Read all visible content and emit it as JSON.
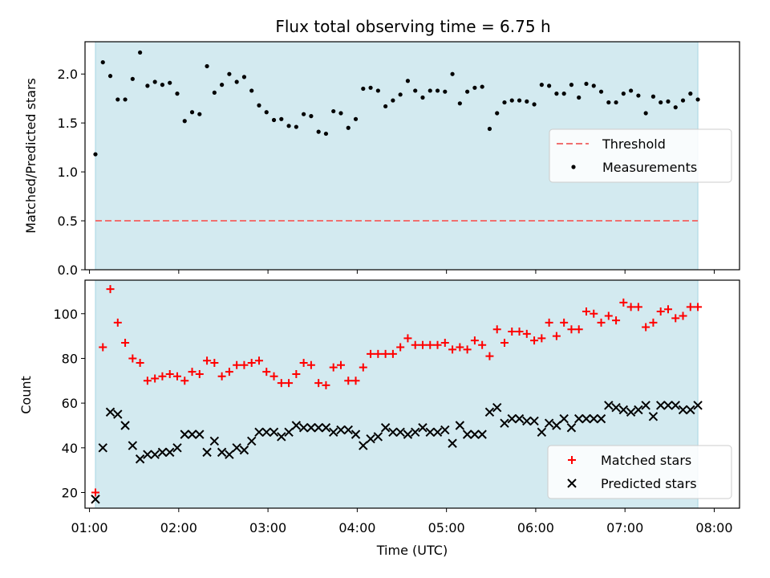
{
  "title": "Flux total observing time = 6.75 h",
  "colors": {
    "shade": "#d3eaf0",
    "shade_edge": "#a8d5e2",
    "threshold": "#f07070",
    "measurements": "#000000",
    "matched": "#ff0000",
    "predicted": "#000000"
  },
  "chart_data": [
    {
      "type": "scatter",
      "panel": "top",
      "xlabel": "",
      "ylabel": "Matched/Predicted stars",
      "xlim": [
        "00:57",
        "08:17"
      ],
      "ylim": [
        0,
        2.33
      ],
      "yticks": [
        {
          "value": 0.0,
          "label": "0.0"
        },
        {
          "value": 0.5,
          "label": "0.5"
        },
        {
          "value": 1.0,
          "label": "1.0"
        },
        {
          "value": 1.5,
          "label": "1.5"
        },
        {
          "value": 2.0,
          "label": "2.0"
        }
      ],
      "xticks": [
        "01:00",
        "02:00",
        "03:00",
        "04:00",
        "05:00",
        "06:00",
        "07:00",
        "08:00"
      ],
      "observing_window": [
        "01:04",
        "07:49"
      ],
      "threshold": {
        "name": "Threshold",
        "value": 0.5
      },
      "legend": {
        "placement": "center-right",
        "entries": [
          "Threshold",
          "Measurements"
        ]
      },
      "series": [
        {
          "name": "Measurements",
          "x": [
            "01:04",
            "01:09",
            "01:14",
            "01:19",
            "01:24",
            "01:29",
            "01:34",
            "01:39",
            "01:44",
            "01:49",
            "01:54",
            "01:59",
            "02:04",
            "02:09",
            "02:14",
            "02:19",
            "02:24",
            "02:29",
            "02:34",
            "02:39",
            "02:44",
            "02:49",
            "02:54",
            "02:59",
            "03:04",
            "03:09",
            "03:14",
            "03:19",
            "03:24",
            "03:29",
            "03:34",
            "03:39",
            "03:44",
            "03:49",
            "03:54",
            "03:59",
            "04:04",
            "04:09",
            "04:14",
            "04:19",
            "04:24",
            "04:29",
            "04:34",
            "04:39",
            "04:44",
            "04:49",
            "04:54",
            "04:59",
            "05:04",
            "05:09",
            "05:14",
            "05:19",
            "05:24",
            "05:29",
            "05:34",
            "05:39",
            "05:44",
            "05:49",
            "05:54",
            "05:59",
            "06:04",
            "06:09",
            "06:14",
            "06:19",
            "06:24",
            "06:29",
            "06:34",
            "06:39",
            "06:44",
            "06:49",
            "06:54",
            "06:59",
            "07:04",
            "07:09",
            "07:14",
            "07:19",
            "07:24",
            "07:29",
            "07:34",
            "07:39",
            "07:44",
            "07:49"
          ],
          "y": [
            1.18,
            2.12,
            1.98,
            1.74,
            1.74,
            1.95,
            2.22,
            1.88,
            1.92,
            1.89,
            1.91,
            1.8,
            1.52,
            1.61,
            1.59,
            2.08,
            1.81,
            1.89,
            2.0,
            1.92,
            1.97,
            1.83,
            1.68,
            1.61,
            1.53,
            1.54,
            1.47,
            1.46,
            1.59,
            1.57,
            1.41,
            1.39,
            1.62,
            1.6,
            1.45,
            1.54,
            1.85,
            1.86,
            1.83,
            1.67,
            1.73,
            1.79,
            1.93,
            1.83,
            1.76,
            1.83,
            1.83,
            1.82,
            2.0,
            1.7,
            1.82,
            1.86,
            1.87,
            1.44,
            1.6,
            1.71,
            1.73,
            1.73,
            1.72,
            1.69,
            1.89,
            1.88,
            1.8,
            1.8,
            1.89,
            1.76,
            1.9,
            1.88,
            1.82,
            1.71,
            1.71,
            1.8,
            1.83,
            1.78,
            1.6,
            1.77,
            1.71,
            1.72,
            1.66,
            1.73,
            1.8,
            1.74
          ]
        }
      ]
    },
    {
      "type": "scatter",
      "panel": "bottom",
      "xlabel": "Time (UTC)",
      "ylabel": "Count",
      "xlim": [
        "00:57",
        "08:17"
      ],
      "ylim": [
        13,
        115
      ],
      "yticks": [
        {
          "value": 20,
          "label": "20"
        },
        {
          "value": 40,
          "label": "40"
        },
        {
          "value": 60,
          "label": "60"
        },
        {
          "value": 80,
          "label": "80"
        },
        {
          "value": 100,
          "label": "100"
        }
      ],
      "xticks": [
        "01:00",
        "02:00",
        "03:00",
        "04:00",
        "05:00",
        "06:00",
        "07:00",
        "08:00"
      ],
      "observing_window": [
        "01:04",
        "07:49"
      ],
      "legend": {
        "placement": "bottom-right",
        "entries": [
          "Matched stars",
          "Predicted stars"
        ]
      },
      "series": [
        {
          "name": "Matched stars",
          "marker": "plus",
          "x": [
            "01:04",
            "01:09",
            "01:14",
            "01:19",
            "01:24",
            "01:29",
            "01:34",
            "01:39",
            "01:44",
            "01:49",
            "01:54",
            "01:59",
            "02:04",
            "02:09",
            "02:14",
            "02:19",
            "02:24",
            "02:29",
            "02:34",
            "02:39",
            "02:44",
            "02:49",
            "02:54",
            "02:59",
            "03:04",
            "03:09",
            "03:14",
            "03:19",
            "03:24",
            "03:29",
            "03:34",
            "03:39",
            "03:44",
            "03:49",
            "03:54",
            "03:59",
            "04:04",
            "04:09",
            "04:14",
            "04:19",
            "04:24",
            "04:29",
            "04:34",
            "04:39",
            "04:44",
            "04:49",
            "04:54",
            "04:59",
            "05:04",
            "05:09",
            "05:14",
            "05:19",
            "05:24",
            "05:29",
            "05:34",
            "05:39",
            "05:44",
            "05:49",
            "05:54",
            "05:59",
            "06:04",
            "06:09",
            "06:14",
            "06:19",
            "06:24",
            "06:29",
            "06:34",
            "06:39",
            "06:44",
            "06:49",
            "06:54",
            "06:59",
            "07:04",
            "07:09",
            "07:14",
            "07:19",
            "07:24",
            "07:29",
            "07:34",
            "07:39",
            "07:44",
            "07:49"
          ],
          "y": [
            20,
            85,
            111,
            96,
            87,
            80,
            78,
            70,
            71,
            72,
            73,
            72,
            70,
            74,
            73,
            79,
            78,
            72,
            74,
            77,
            77,
            78,
            79,
            74,
            72,
            69,
            69,
            73,
            78,
            77,
            69,
            68,
            76,
            77,
            70,
            70,
            76,
            82,
            82,
            82,
            82,
            85,
            89,
            86,
            86,
            86,
            86,
            87,
            84,
            85,
            84,
            88,
            86,
            81,
            93,
            87,
            92,
            92,
            91,
            88,
            89,
            96,
            90,
            96,
            93,
            93,
            101,
            100,
            96,
            99,
            97,
            105,
            103,
            103,
            94,
            96,
            101,
            102,
            98,
            99,
            103,
            103
          ]
        },
        {
          "name": "Predicted stars",
          "marker": "x",
          "x": [
            "01:04",
            "01:09",
            "01:14",
            "01:19",
            "01:24",
            "01:29",
            "01:34",
            "01:39",
            "01:44",
            "01:49",
            "01:54",
            "01:59",
            "02:04",
            "02:09",
            "02:14",
            "02:19",
            "02:24",
            "02:29",
            "02:34",
            "02:39",
            "02:44",
            "02:49",
            "02:54",
            "02:59",
            "03:04",
            "03:09",
            "03:14",
            "03:19",
            "03:24",
            "03:29",
            "03:34",
            "03:39",
            "03:44",
            "03:49",
            "03:54",
            "03:59",
            "04:04",
            "04:09",
            "04:14",
            "04:19",
            "04:24",
            "04:29",
            "04:34",
            "04:39",
            "04:44",
            "04:49",
            "04:54",
            "04:59",
            "05:04",
            "05:09",
            "05:14",
            "05:19",
            "05:24",
            "05:29",
            "05:34",
            "05:39",
            "05:44",
            "05:49",
            "05:54",
            "05:59",
            "06:04",
            "06:09",
            "06:14",
            "06:19",
            "06:24",
            "06:29",
            "06:34",
            "06:39",
            "06:44",
            "06:49",
            "06:54",
            "06:59",
            "07:04",
            "07:09",
            "07:14",
            "07:19",
            "07:24",
            "07:29",
            "07:34",
            "07:39",
            "07:44",
            "07:49"
          ],
          "y": [
            17,
            40,
            56,
            55,
            50,
            41,
            35,
            37,
            37,
            38,
            38,
            40,
            46,
            46,
            46,
            38,
            43,
            38,
            37,
            40,
            39,
            43,
            47,
            47,
            47,
            45,
            47,
            50,
            49,
            49,
            49,
            49,
            47,
            48,
            48,
            46,
            41,
            44,
            45,
            49,
            47,
            47,
            46,
            47,
            49,
            47,
            47,
            48,
            42,
            50,
            46,
            46,
            46,
            56,
            58,
            51,
            53,
            53,
            52,
            52,
            47,
            51,
            50,
            53,
            49,
            53,
            53,
            53,
            53,
            59,
            58,
            57,
            56,
            57,
            59,
            54,
            59,
            59,
            59,
            57,
            57,
            59
          ]
        }
      ]
    }
  ]
}
